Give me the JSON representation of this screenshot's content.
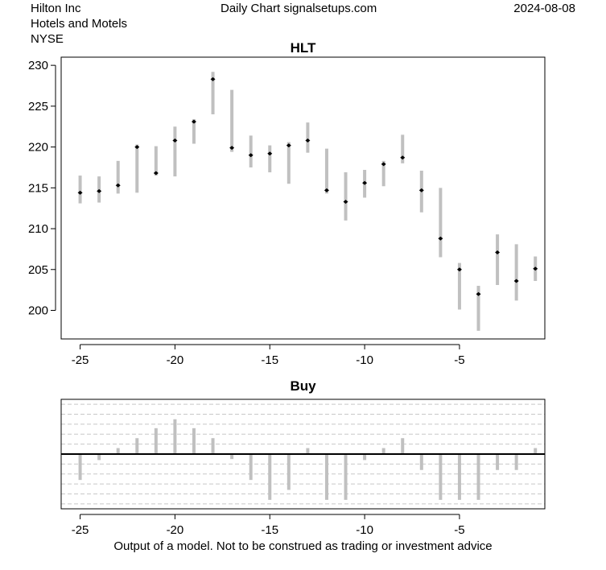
{
  "header": {
    "company": "Hilton Inc",
    "industry": "Hotels and Motels",
    "exchange": "NYSE",
    "source": "Daily Chart signalsetups.com",
    "date": "2024-08-08"
  },
  "footer": {
    "disclaimer": "Output of a model. Not to be construed as trading or investment advice"
  },
  "colors": {
    "bar": "#c0c0c0",
    "frame": "#000000",
    "grid": "#c8c8c8",
    "marker": "#000000"
  },
  "chart_data": [
    {
      "type": "range-bar",
      "title": "HLT",
      "xlim": [
        -26,
        -0.5
      ],
      "ylim": [
        196.5,
        231
      ],
      "x_ticks": [
        -25,
        -20,
        -15,
        -10,
        -5
      ],
      "y_ticks": [
        200,
        205,
        210,
        215,
        220,
        225,
        230
      ],
      "bars": [
        {
          "x": -25,
          "low": 213.1,
          "high": 216.5,
          "close": 214.4
        },
        {
          "x": -24,
          "low": 213.2,
          "high": 216.4,
          "close": 214.6
        },
        {
          "x": -23,
          "low": 214.3,
          "high": 218.3,
          "close": 215.3
        },
        {
          "x": -22,
          "low": 214.4,
          "high": 220.3,
          "close": 220.0
        },
        {
          "x": -21,
          "low": 216.5,
          "high": 220.1,
          "close": 216.8
        },
        {
          "x": -20,
          "low": 216.4,
          "high": 222.5,
          "close": 220.8
        },
        {
          "x": -19,
          "low": 220.4,
          "high": 223.4,
          "close": 223.1
        },
        {
          "x": -18,
          "low": 224.0,
          "high": 229.2,
          "close": 228.3
        },
        {
          "x": -17,
          "low": 219.4,
          "high": 227.0,
          "close": 219.9
        },
        {
          "x": -16,
          "low": 217.5,
          "high": 221.4,
          "close": 219.0
        },
        {
          "x": -15,
          "low": 216.9,
          "high": 220.2,
          "close": 219.2
        },
        {
          "x": -14,
          "low": 215.5,
          "high": 220.6,
          "close": 220.2
        },
        {
          "x": -13,
          "low": 219.3,
          "high": 223.0,
          "close": 220.8
        },
        {
          "x": -12,
          "low": 214.3,
          "high": 219.8,
          "close": 214.7
        },
        {
          "x": -11,
          "low": 211.0,
          "high": 216.9,
          "close": 213.3
        },
        {
          "x": -10,
          "low": 213.8,
          "high": 217.2,
          "close": 215.6
        },
        {
          "x": -9,
          "low": 215.2,
          "high": 218.3,
          "close": 217.9
        },
        {
          "x": -8,
          "low": 218.0,
          "high": 221.5,
          "close": 218.7
        },
        {
          "x": -7,
          "low": 212.0,
          "high": 217.1,
          "close": 214.7
        },
        {
          "x": -6,
          "low": 206.5,
          "high": 215.0,
          "close": 208.8
        },
        {
          "x": -5,
          "low": 200.1,
          "high": 205.8,
          "close": 205.0
        },
        {
          "x": -4,
          "low": 197.5,
          "high": 203.0,
          "close": 202.0
        },
        {
          "x": -3,
          "low": 203.1,
          "high": 209.3,
          "close": 207.1
        },
        {
          "x": -2,
          "low": 201.2,
          "high": 208.1,
          "close": 203.6
        },
        {
          "x": -1,
          "low": 203.6,
          "high": 206.6,
          "close": 205.1
        }
      ]
    },
    {
      "type": "bar",
      "title": "Buy",
      "xlim": [
        -26,
        -0.5
      ],
      "ylim": [
        -5.5,
        5.5
      ],
      "grid": true,
      "grid_lines": [
        -5,
        -4,
        -3,
        -2,
        -1,
        1,
        2,
        3,
        4,
        5
      ],
      "x_ticks": [
        -25,
        -20,
        -15,
        -10,
        -5
      ],
      "bars": [
        {
          "x": -25,
          "value": -2.6
        },
        {
          "x": -24,
          "value": -0.6
        },
        {
          "x": -23,
          "value": 0.6
        },
        {
          "x": -22,
          "value": 1.6
        },
        {
          "x": -21,
          "value": 2.6
        },
        {
          "x": -20,
          "value": 3.5
        },
        {
          "x": -19,
          "value": 2.6
        },
        {
          "x": -18,
          "value": 1.6
        },
        {
          "x": -17,
          "value": -0.5
        },
        {
          "x": -16,
          "value": -2.6
        },
        {
          "x": -15,
          "value": -4.6
        },
        {
          "x": -14,
          "value": -3.6
        },
        {
          "x": -13,
          "value": 0.6
        },
        {
          "x": -12,
          "value": -4.6
        },
        {
          "x": -11,
          "value": -4.6
        },
        {
          "x": -10,
          "value": -0.6
        },
        {
          "x": -9,
          "value": 0.6
        },
        {
          "x": -8,
          "value": 1.6
        },
        {
          "x": -7,
          "value": -1.6
        },
        {
          "x": -6,
          "value": -4.6
        },
        {
          "x": -5,
          "value": -4.6
        },
        {
          "x": -4,
          "value": -4.6
        },
        {
          "x": -3,
          "value": -1.6
        },
        {
          "x": -2,
          "value": -1.6
        },
        {
          "x": -1,
          "value": 0.6
        }
      ]
    }
  ]
}
